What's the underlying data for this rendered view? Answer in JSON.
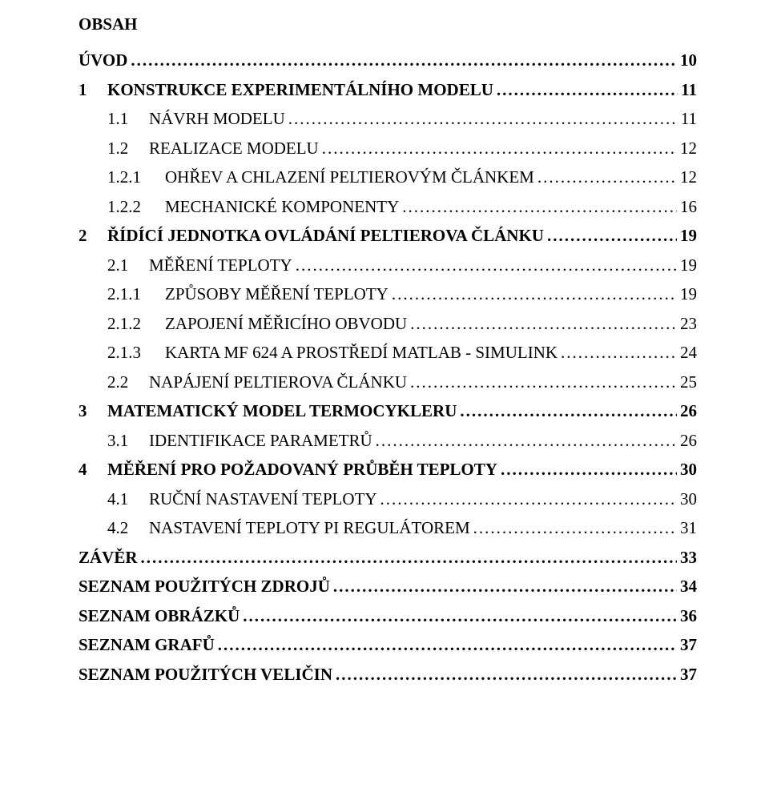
{
  "title": "OBSAH",
  "leader": "................................................................................................................................................................................................................................................",
  "entries": [
    {
      "num": "",
      "label": "ÚVOD",
      "page": "10",
      "level": 0,
      "bold": true,
      "caps": true
    },
    {
      "num": "1",
      "label": "KONSTRUKCE EXPERIMENTÁLNÍHO MODELU",
      "page": "11",
      "level": 1,
      "bold": true,
      "caps": true
    },
    {
      "num": "1.1",
      "label": "NÁVRH MODELU",
      "page": "11",
      "level": 2,
      "bold": false,
      "caps": true
    },
    {
      "num": "1.2",
      "label": "REALIZACE MODELU",
      "page": "12",
      "level": 2,
      "bold": false,
      "caps": true
    },
    {
      "num": "1.2.1",
      "label": "OHŘEV A CHLAZENÍ PELTIEROVÝM ČLÁNKEM",
      "page": "12",
      "level": 3,
      "bold": false,
      "caps": true
    },
    {
      "num": "1.2.2",
      "label": "MECHANICKÉ KOMPONENTY",
      "page": "16",
      "level": 3,
      "bold": false,
      "caps": true
    },
    {
      "num": "2",
      "label": "ŘÍDÍCÍ JEDNOTKA OVLÁDÁNÍ PELTIEROVA ČLÁNKU",
      "page": "19",
      "level": 1,
      "bold": true,
      "caps": true
    },
    {
      "num": "2.1",
      "label": "MĚŘENÍ TEPLOTY",
      "page": "19",
      "level": 2,
      "bold": false,
      "caps": true
    },
    {
      "num": "2.1.1",
      "label": "ZPŮSOBY MĚŘENÍ TEPLOTY",
      "page": "19",
      "level": 3,
      "bold": false,
      "caps": true
    },
    {
      "num": "2.1.2",
      "label": "ZAPOJENÍ MĚŘICÍHO OBVODU",
      "page": "23",
      "level": 3,
      "bold": false,
      "caps": true
    },
    {
      "num": "2.1.3",
      "label": "KARTA MF 624 A PROSTŘEDÍ MATLAB - SIMULINK",
      "page": "24",
      "level": 3,
      "bold": false,
      "caps": true
    },
    {
      "num": "2.2",
      "label": "NAPÁJENÍ PELTIEROVA ČLÁNKU",
      "page": "25",
      "level": 2,
      "bold": false,
      "caps": true
    },
    {
      "num": "3",
      "label": "MATEMATICKÝ MODEL TERMOCYKLERU",
      "page": "26",
      "level": 1,
      "bold": true,
      "caps": true
    },
    {
      "num": "3.1",
      "label": "IDENTIFIKACE PARAMETRŮ",
      "page": "26",
      "level": 2,
      "bold": false,
      "caps": true
    },
    {
      "num": "4",
      "label": "MĚŘENÍ PRO POŽADOVANÝ PRŮBĚH TEPLOTY",
      "page": "30",
      "level": 1,
      "bold": true,
      "caps": true
    },
    {
      "num": "4.1",
      "label": "RUČNÍ NASTAVENÍ TEPLOTY",
      "page": "30",
      "level": 2,
      "bold": false,
      "caps": true
    },
    {
      "num": "4.2",
      "label": "NASTAVENÍ TEPLOTY PI REGULÁTOREM",
      "page": "31",
      "level": 2,
      "bold": false,
      "caps": true
    },
    {
      "num": "",
      "label": "ZÁVĚR",
      "page": "33",
      "level": 0,
      "bold": true,
      "caps": true
    },
    {
      "num": "",
      "label": "SEZNAM POUŽITÝCH ZDROJŮ",
      "page": "34",
      "level": 0,
      "bold": true,
      "caps": true
    },
    {
      "num": "",
      "label": "SEZNAM OBRÁZKŮ",
      "page": "36",
      "level": 0,
      "bold": true,
      "caps": true
    },
    {
      "num": "",
      "label": "SEZNAM GRAFŮ",
      "page": "37",
      "level": 0,
      "bold": true,
      "caps": true
    },
    {
      "num": "",
      "label": "SEZNAM POUŽITÝCH VELIČIN",
      "page": "37",
      "level": 0,
      "bold": true,
      "caps": true
    }
  ]
}
